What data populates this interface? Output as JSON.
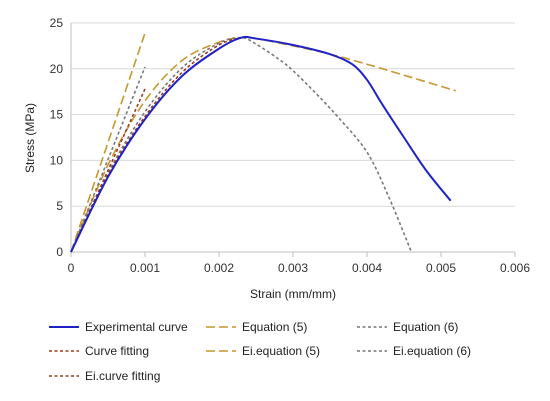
{
  "chart_data": {
    "type": "line",
    "xlabel": "Strain (mm/mm)",
    "ylabel": "Stress (MPa)",
    "xlim": [
      0,
      0.006
    ],
    "ylim": [
      0,
      25
    ],
    "x_ticks": [
      "0",
      "0.001",
      "0.002",
      "0.003",
      "0.004",
      "0.005",
      "0.006"
    ],
    "y_ticks": [
      "0",
      "5",
      "10",
      "15",
      "20",
      "25"
    ],
    "grid": "horizontal",
    "legend_placement": "bottom",
    "series": [
      {
        "name": "Experimental curve",
        "color": "#1f22c8",
        "dash": "solid",
        "x": [
          0,
          0.0005,
          0.001,
          0.0015,
          0.002,
          0.0023,
          0.0025,
          0.003,
          0.0035,
          0.0038,
          0.004,
          0.0042,
          0.0045,
          0.0048,
          0.00513
        ],
        "y": [
          0,
          8.2,
          14.5,
          19.2,
          22.2,
          23.4,
          23.3,
          22.6,
          21.6,
          20.5,
          18.8,
          16.2,
          12.5,
          8.9,
          5.6
        ]
      },
      {
        "name": "Equation (5)",
        "color": "#c8962e",
        "dash": "long",
        "x": [
          0,
          0.0005,
          0.001,
          0.0015,
          0.002,
          0.0023,
          0.0025,
          0.003,
          0.0035,
          0.004,
          0.0045,
          0.0052
        ],
        "y": [
          0,
          9.5,
          16.5,
          20.9,
          22.9,
          23.4,
          23.3,
          22.5,
          21.6,
          20.5,
          19.3,
          17.6
        ]
      },
      {
        "name": "Equation (6)",
        "color": "#777777",
        "dash": "short",
        "x": [
          0,
          0.0005,
          0.001,
          0.0015,
          0.002,
          0.0023,
          0.0025,
          0.0028,
          0.003,
          0.0033,
          0.0036,
          0.004,
          0.0043,
          0.0046
        ],
        "y": [
          0,
          8.6,
          15.3,
          20.1,
          22.8,
          23.4,
          22.7,
          21.1,
          19.8,
          17.4,
          14.8,
          10.9,
          5.9,
          0
        ]
      },
      {
        "name": "Curve fitting",
        "color": "#9e3a1a",
        "dash": "short",
        "x": [
          0,
          0.0005,
          0.001,
          0.0015,
          0.002,
          0.0023
        ],
        "y": [
          0,
          8.4,
          14.8,
          19.6,
          22.6,
          23.4
        ]
      },
      {
        "name": "Ei.equation (5)",
        "color": "#c8962e",
        "dash": "long",
        "x": [
          0,
          0.001
        ],
        "y": [
          0,
          23.9
        ]
      },
      {
        "name": "Ei.equation (6)",
        "color": "#777777",
        "dash": "short",
        "x": [
          0,
          0.001
        ],
        "y": [
          0,
          20.2
        ]
      },
      {
        "name": "Ei.curve fitting",
        "color": "#9e3a1a",
        "dash": "short",
        "x": [
          0,
          0.001
        ],
        "y": [
          0,
          17.8
        ]
      }
    ]
  }
}
